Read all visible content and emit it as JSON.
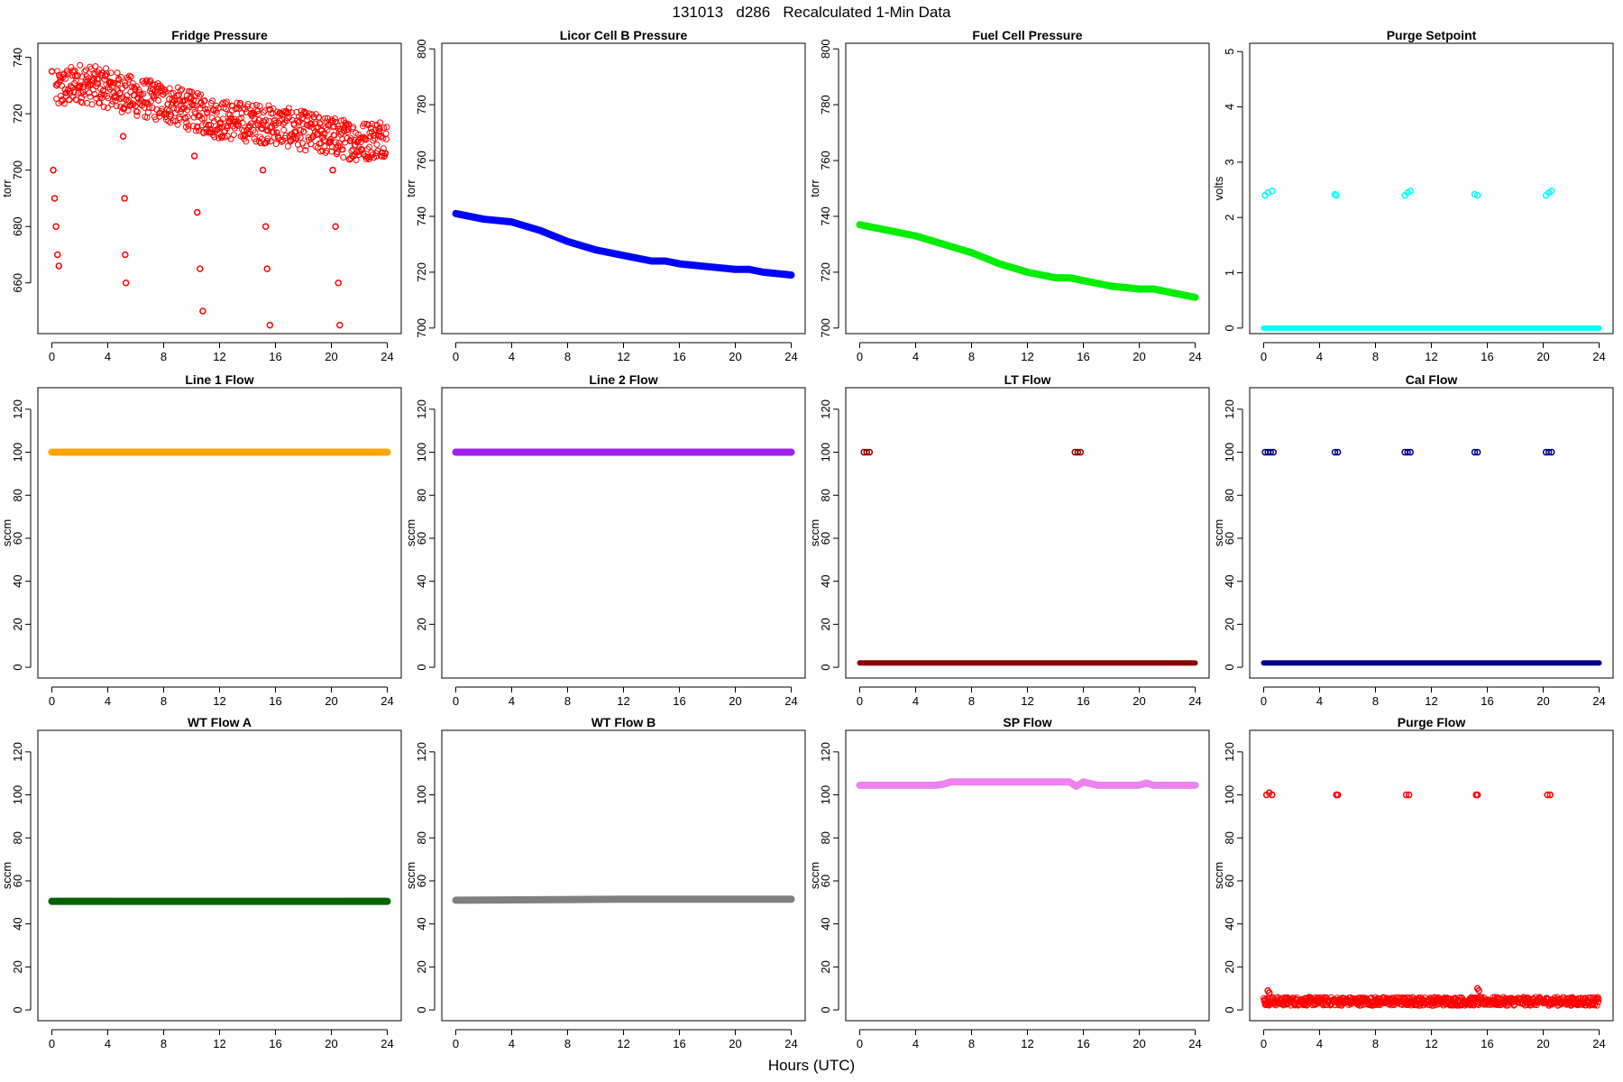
{
  "figure": {
    "title": "131013   d286   Recalculated 1-Min Data",
    "xlabel": "Hours (UTC)"
  },
  "chart_data": [
    {
      "type": "scatter",
      "title": "Fridge Pressure",
      "ylabel": "torr",
      "xlim": [
        -1,
        25
      ],
      "ylim": [
        642,
        745
      ],
      "x_ticks": [
        0,
        4,
        8,
        12,
        16,
        20,
        24
      ],
      "y_ticks": [
        660,
        680,
        700,
        720,
        740
      ],
      "color": "#ff0000",
      "marker": "open",
      "series": [
        {
          "x": [
            0.3,
            2,
            4,
            6,
            8,
            10,
            12,
            14,
            16,
            18,
            20,
            22,
            24
          ],
          "y": [
            728,
            731,
            729,
            726,
            724,
            721,
            718,
            717,
            716,
            714,
            712,
            710,
            712
          ],
          "noise": 7
        },
        {
          "x": [
            0,
            0.1,
            0.2,
            0.3,
            0.4,
            0.5
          ],
          "y": [
            735,
            700,
            690,
            680,
            670,
            666
          ]
        },
        {
          "x": [
            5.1,
            5.2,
            5.25,
            5.3
          ],
          "y": [
            712,
            690,
            670,
            660
          ]
        },
        {
          "x": [
            10.2,
            10.4,
            10.6,
            10.8
          ],
          "y": [
            705,
            685,
            665,
            650
          ]
        },
        {
          "x": [
            15.1,
            15.3,
            15.4,
            15.6
          ],
          "y": [
            700,
            680,
            665,
            645
          ]
        },
        {
          "x": [
            20.1,
            20.3,
            20.5,
            20.6
          ],
          "y": [
            700,
            680,
            660,
            645
          ]
        }
      ]
    },
    {
      "type": "line",
      "title": "Licor Cell B Pressure",
      "ylabel": "torr",
      "xlim": [
        -1,
        25
      ],
      "ylim": [
        698,
        802
      ],
      "x_ticks": [
        0,
        4,
        8,
        12,
        16,
        20,
        24
      ],
      "y_ticks": [
        700,
        720,
        740,
        760,
        780,
        800
      ],
      "color": "#0000ff",
      "series": [
        {
          "x": [
            0,
            2,
            4,
            6,
            8,
            10,
            12,
            14,
            15,
            16,
            18,
            20,
            21,
            22,
            24
          ],
          "y": [
            741,
            739,
            738,
            735,
            731,
            728,
            726,
            724,
            724,
            723,
            722,
            721,
            721,
            720,
            719
          ]
        }
      ]
    },
    {
      "type": "line",
      "title": "Fuel Cell Pressure",
      "ylabel": "torr",
      "xlim": [
        -1,
        25
      ],
      "ylim": [
        698,
        802
      ],
      "x_ticks": [
        0,
        4,
        8,
        12,
        16,
        20,
        24
      ],
      "y_ticks": [
        700,
        720,
        740,
        760,
        780,
        800
      ],
      "color": "#00ee00",
      "series": [
        {
          "x": [
            0,
            2,
            4,
            6,
            8,
            10,
            12,
            14,
            15,
            16,
            18,
            20,
            21,
            22,
            24
          ],
          "y": [
            737,
            735,
            733,
            730,
            727,
            723,
            720,
            718,
            718,
            717,
            715,
            714,
            714,
            713,
            711
          ]
        }
      ]
    },
    {
      "type": "scatter",
      "title": "Purge Setpoint",
      "ylabel": "volts",
      "xlim": [
        -1,
        25
      ],
      "ylim": [
        -0.1,
        5.15
      ],
      "x_ticks": [
        0,
        4,
        8,
        12,
        16,
        20,
        24
      ],
      "y_ticks": [
        0,
        1,
        2,
        3,
        4,
        5
      ],
      "color": "#00ffff",
      "marker": "open",
      "series": [
        {
          "x": [
            0,
            24
          ],
          "y": [
            0,
            0
          ]
        },
        {
          "x": [
            0.1,
            0.3,
            0.6,
            5.1,
            5.2,
            10.1,
            10.3,
            10.5,
            15.1,
            15.3,
            20.2,
            20.4,
            20.6
          ],
          "y": [
            2.4,
            2.45,
            2.48,
            2.42,
            2.4,
            2.4,
            2.45,
            2.48,
            2.42,
            2.4,
            2.4,
            2.45,
            2.48
          ]
        }
      ]
    },
    {
      "type": "line",
      "title": "Line 1 Flow",
      "ylabel": "sccm",
      "xlim": [
        -1,
        25
      ],
      "ylim": [
        -5,
        130
      ],
      "x_ticks": [
        0,
        4,
        8,
        12,
        16,
        20,
        24
      ],
      "y_ticks": [
        0,
        20,
        40,
        60,
        80,
        100,
        120
      ],
      "color": "#ffa500",
      "series": [
        {
          "x": [
            0,
            24
          ],
          "y": [
            100,
            100
          ]
        }
      ]
    },
    {
      "type": "line",
      "title": "Line 2 Flow",
      "ylabel": "sccm",
      "xlim": [
        -1,
        25
      ],
      "ylim": [
        -5,
        130
      ],
      "x_ticks": [
        0,
        4,
        8,
        12,
        16,
        20,
        24
      ],
      "y_ticks": [
        0,
        20,
        40,
        60,
        80,
        100,
        120
      ],
      "color": "#a020f0",
      "series": [
        {
          "x": [
            0,
            24
          ],
          "y": [
            100,
            100
          ]
        }
      ]
    },
    {
      "type": "scatter",
      "title": "LT Flow",
      "ylabel": "sccm",
      "xlim": [
        -1,
        25
      ],
      "ylim": [
        -5,
        130
      ],
      "x_ticks": [
        0,
        4,
        8,
        12,
        16,
        20,
        24
      ],
      "y_ticks": [
        0,
        20,
        40,
        60,
        80,
        100,
        120
      ],
      "color": "#8b0000",
      "marker": "open",
      "series": [
        {
          "x": [
            0,
            24
          ],
          "y": [
            2,
            2
          ]
        },
        {
          "x": [
            0.3,
            0.5,
            0.7,
            15.4,
            15.6,
            15.8
          ],
          "y": [
            100,
            100,
            100,
            100,
            100,
            100
          ]
        }
      ]
    },
    {
      "type": "scatter",
      "title": "Cal Flow",
      "ylabel": "sccm",
      "xlim": [
        -1,
        25
      ],
      "ylim": [
        -5,
        130
      ],
      "x_ticks": [
        0,
        4,
        8,
        12,
        16,
        20,
        24
      ],
      "y_ticks": [
        0,
        20,
        40,
        60,
        80,
        100,
        120
      ],
      "color": "#00008b",
      "marker": "open",
      "series": [
        {
          "x": [
            0,
            24
          ],
          "y": [
            2,
            2
          ]
        },
        {
          "x": [
            0.1,
            0.3,
            0.5,
            0.7,
            5.1,
            5.3,
            10.1,
            10.3,
            10.5,
            15.1,
            15.3,
            20.2,
            20.4,
            20.6
          ],
          "y": [
            100,
            100,
            100,
            100,
            100,
            100,
            100,
            100,
            100,
            100,
            100,
            100,
            100,
            100
          ]
        }
      ]
    },
    {
      "type": "line",
      "title": "WT Flow A",
      "ylabel": "sccm",
      "xlim": [
        -1,
        25
      ],
      "ylim": [
        -5,
        130
      ],
      "x_ticks": [
        0,
        4,
        8,
        12,
        16,
        20,
        24
      ],
      "y_ticks": [
        0,
        20,
        40,
        60,
        80,
        100,
        120
      ],
      "color": "#006400",
      "series": [
        {
          "x": [
            0,
            24
          ],
          "y": [
            50.5,
            50.5
          ]
        }
      ]
    },
    {
      "type": "line",
      "title": "WT Flow B",
      "ylabel": "sccm",
      "xlim": [
        -1,
        25
      ],
      "ylim": [
        -5,
        130
      ],
      "x_ticks": [
        0,
        4,
        8,
        12,
        16,
        20,
        24
      ],
      "y_ticks": [
        0,
        20,
        40,
        60,
        80,
        100,
        120
      ],
      "color": "#808080",
      "series": [
        {
          "x": [
            0,
            12,
            24
          ],
          "y": [
            51,
            51.5,
            51.5
          ]
        }
      ]
    },
    {
      "type": "line",
      "title": "SP Flow",
      "ylabel": "sccm",
      "xlim": [
        -1,
        25
      ],
      "ylim": [
        -5,
        130
      ],
      "x_ticks": [
        0,
        4,
        8,
        12,
        16,
        20,
        24
      ],
      "y_ticks": [
        0,
        20,
        40,
        60,
        80,
        100,
        120
      ],
      "color": "#ee82ee",
      "series": [
        {
          "x": [
            0,
            5.5,
            6,
            6.5,
            10,
            15,
            15.5,
            16,
            17,
            20,
            20.5,
            21,
            24
          ],
          "y": [
            104.5,
            104.5,
            105,
            106,
            106,
            106,
            104,
            106,
            104.5,
            104.5,
            105.5,
            104.5,
            104.5
          ]
        }
      ]
    },
    {
      "type": "scatter",
      "title": "Purge Flow",
      "ylabel": "sccm",
      "xlim": [
        -1,
        25
      ],
      "ylim": [
        -5,
        130
      ],
      "x_ticks": [
        0,
        4,
        8,
        12,
        16,
        20,
        24
      ],
      "y_ticks": [
        0,
        20,
        40,
        60,
        80,
        100,
        120
      ],
      "color": "#ff0000",
      "marker": "open",
      "series": [
        {
          "x": [
            0,
            6,
            12,
            18,
            24
          ],
          "y": [
            4,
            4,
            4,
            4,
            4
          ],
          "noise": 2
        },
        {
          "x": [
            0.2,
            0.4,
            0.6,
            5.2,
            5.3,
            10.2,
            10.4,
            15.2,
            15.3,
            20.3,
            20.5
          ],
          "y": [
            100,
            101,
            100,
            100,
            100,
            100,
            100,
            100,
            100,
            100,
            100
          ]
        },
        {
          "x": [
            0.3,
            0.4,
            15.3,
            15.4
          ],
          "y": [
            9,
            8,
            10,
            9
          ]
        }
      ]
    }
  ]
}
